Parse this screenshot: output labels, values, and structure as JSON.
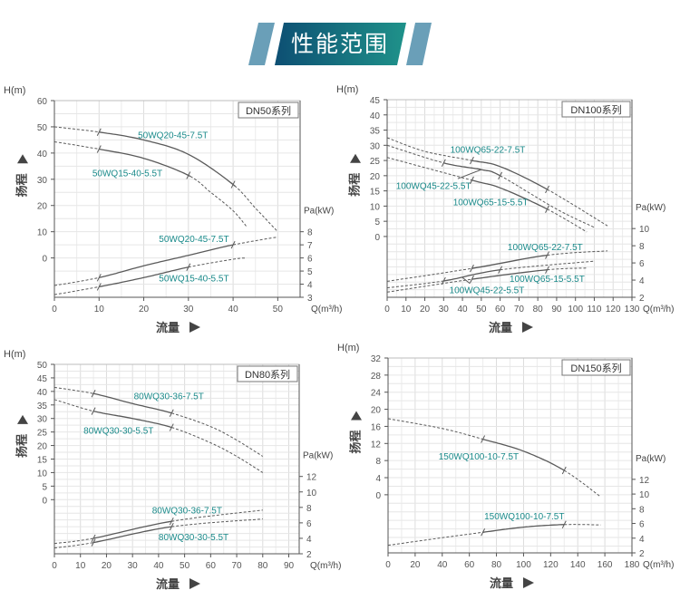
{
  "header": {
    "title": "性能范围"
  },
  "colors": {
    "curve": "#5a5a5a",
    "label": "#1a8a8a",
    "banner_start": "#0d4f73",
    "banner_end": "#1f928a",
    "banner_side": "#6a9fb8"
  },
  "chart_data": [
    {
      "type": "line",
      "title": "DN50系列",
      "ylabel": "H(m)",
      "y2label": "Pa(kW)",
      "xlabel": "Q(m³/h)",
      "y_axis_name": "扬程",
      "x_axis_name": "流量",
      "xlim": [
        0,
        55
      ],
      "ylim": [
        -15,
        60
      ],
      "y2lim": [
        3,
        18
      ],
      "xticks": [
        0,
        10,
        20,
        30,
        40,
        50
      ],
      "yticks": [
        0,
        10,
        20,
        30,
        40,
        50,
        60
      ],
      "y2ticks": [
        3,
        4,
        5,
        6,
        7,
        8
      ],
      "grid": true,
      "series": [
        {
          "name": "50WQ20-45-7.5T",
          "axis": "h",
          "points": [
            [
              0,
              50
            ],
            [
              10,
              48
            ],
            [
              20,
              45
            ],
            [
              30,
              39.5
            ],
            [
              40,
              28
            ],
            [
              45,
              19
            ],
            [
              50,
              10
            ]
          ],
          "solid": [
            10,
            40
          ],
          "label_at": [
            18.7,
            47
          ]
        },
        {
          "name": "50WQ15-40-5.5T",
          "axis": "h",
          "points": [
            [
              0,
              44.3
            ],
            [
              10,
              41.5
            ],
            [
              20,
              38
            ],
            [
              30,
              31.5
            ],
            [
              35,
              25
            ],
            [
              40,
              18
            ],
            [
              43,
              12
            ]
          ],
          "solid": [
            10,
            30
          ],
          "label_at": [
            8.5,
            32.6
          ]
        },
        {
          "name": "50WQ20-45-7.5T",
          "axis": "p",
          "points": [
            [
              0,
              3.9
            ],
            [
              10,
              4.5
            ],
            [
              20,
              5.4
            ],
            [
              30,
              6.2
            ],
            [
              40,
              7
            ],
            [
              50,
              7.6
            ]
          ],
          "solid": [
            10,
            40
          ],
          "label_at": [
            23.4,
            7.5
          ]
        },
        {
          "name": "50WQ15-40-5.5T",
          "axis": "p",
          "points": [
            [
              0,
              3.2
            ],
            [
              10,
              3.8
            ],
            [
              20,
              4.5
            ],
            [
              30,
              5.3
            ],
            [
              40,
              5.9
            ],
            [
              43,
              6.0
            ]
          ],
          "solid": [
            10,
            30
          ],
          "label_at": [
            23.4,
            4.5
          ]
        }
      ]
    },
    {
      "type": "line",
      "title": "DN100系列",
      "ylabel": "H(m)",
      "y2label": "Pa(kW)",
      "xlabel": "Q(m³/h)",
      "y_axis_name": "扬程",
      "x_axis_name": "流量",
      "xlim": [
        0,
        130
      ],
      "ylim": [
        -20,
        45
      ],
      "y2lim": [
        2,
        25
      ],
      "xticks": [
        0,
        10,
        20,
        30,
        40,
        50,
        60,
        70,
        80,
        90,
        100,
        110,
        120,
        130
      ],
      "yticks": [
        0,
        5,
        10,
        15,
        20,
        25,
        30,
        35,
        40,
        45
      ],
      "y2ticks": [
        2,
        4,
        6,
        8,
        10
      ],
      "grid": true,
      "series": [
        {
          "name": "100WQ65-22-7.5T",
          "axis": "h",
          "points": [
            [
              0,
              32.5
            ],
            [
              20,
              28
            ],
            [
              45,
              25
            ],
            [
              60,
              23
            ],
            [
              85,
              15.5
            ],
            [
              117,
              3.5
            ]
          ],
          "solid": [
            45,
            85
          ],
          "label_at": [
            33.5,
            28.7
          ]
        },
        {
          "name": "100WQ45-22-5.5T",
          "axis": "h",
          "points": [
            [
              0,
              30
            ],
            [
              30,
              24.2
            ],
            [
              50,
              22
            ],
            [
              60,
              20
            ],
            [
              90,
              9
            ],
            [
              110,
              3
            ]
          ],
          "solid": [
            30,
            60
          ],
          "label_at": [
            4.7,
            16.8
          ],
          "leader": [
            [
              37.5,
              19
            ],
            [
              50,
              22
            ]
          ]
        },
        {
          "name": "100WQ65-15-5.5T",
          "axis": "h",
          "points": [
            [
              0,
              26
            ],
            [
              45,
              18.5
            ],
            [
              60,
              16
            ],
            [
              85,
              9
            ],
            [
              106,
              1.5
            ]
          ],
          "solid": [
            45,
            85
          ],
          "label_at": [
            35,
            11.5
          ]
        },
        {
          "name": "100WQ65-22-7.5T",
          "axis": "p",
          "points": [
            [
              0,
              3.86
            ],
            [
              45,
              5.36
            ],
            [
              85,
              6.9
            ],
            [
              117,
              7.4
            ]
          ],
          "solid": [
            45,
            85
          ],
          "label_at": [
            64,
            7.9
          ]
        },
        {
          "name": "100WQ45-22-5.5T",
          "axis": "p",
          "points": [
            [
              0,
              3.1
            ],
            [
              30,
              3.9
            ],
            [
              60,
              5.2
            ],
            [
              110,
              6.2
            ]
          ],
          "solid": [
            30,
            60
          ],
          "label_at": [
            33,
            2.9
          ],
          "leader": [
            [
              44,
              3.6
            ],
            [
              40,
              4.3
            ]
          ]
        },
        {
          "name": "100WQ65-15-5.5T",
          "axis": "p",
          "points": [
            [
              0,
              2.6
            ],
            [
              45,
              4.1
            ],
            [
              85,
              5.2
            ],
            [
              106,
              5.4
            ]
          ],
          "solid": [
            45,
            85
          ],
          "label_at": [
            65,
            4.2
          ]
        }
      ]
    },
    {
      "type": "line",
      "title": "DN80系列",
      "ylabel": "H(m)",
      "y2label": "Pa(kW)",
      "xlabel": "Q(m³/h)",
      "y_axis_name": "扬程",
      "x_axis_name": "流量",
      "xlim": [
        0,
        94
      ],
      "ylim": [
        -20,
        50
      ],
      "y2lim": [
        2,
        26.5
      ],
      "xticks": [
        0,
        10,
        20,
        30,
        40,
        50,
        60,
        70,
        80,
        90
      ],
      "yticks": [
        0,
        5,
        10,
        15,
        20,
        25,
        30,
        35,
        40,
        45,
        50
      ],
      "y2ticks": [
        2,
        4,
        6,
        8,
        10,
        12
      ],
      "grid": true,
      "series": [
        {
          "name": "80WQ30-36-7.5T",
          "axis": "h",
          "points": [
            [
              0,
              41.5
            ],
            [
              15,
              39.2
            ],
            [
              30,
              35.5
            ],
            [
              45,
              32
            ],
            [
              60,
              27
            ],
            [
              70,
              22
            ],
            [
              80,
              16
            ]
          ],
          "solid": [
            15,
            45
          ],
          "label_at": [
            30.5,
            38.5
          ]
        },
        {
          "name": "80WQ30-30-5.5T",
          "axis": "h",
          "points": [
            [
              0,
              37
            ],
            [
              15,
              32.7
            ],
            [
              30,
              30
            ],
            [
              45,
              26.7
            ],
            [
              60,
              21
            ],
            [
              70,
              16
            ],
            [
              80,
              10
            ]
          ],
          "solid": [
            15,
            45
          ],
          "label_at": [
            11.2,
            25.8
          ]
        },
        {
          "name": "80WQ30-36-7.5T",
          "axis": "p",
          "points": [
            [
              0,
              3.33
            ],
            [
              15,
              4.0
            ],
            [
              45,
              6.2
            ],
            [
              80,
              7.65
            ]
          ],
          "solid": [
            15,
            45
          ],
          "label_at": [
            37.5,
            7.7
          ]
        },
        {
          "name": "80WQ30-30-5.5T",
          "axis": "p",
          "points": [
            [
              0,
              2.75
            ],
            [
              15,
              3.45
            ],
            [
              45,
              5.5
            ],
            [
              80,
              6.5
            ]
          ],
          "solid": [
            15,
            45
          ],
          "label_at": [
            40,
            4.2
          ]
        }
      ]
    },
    {
      "type": "line",
      "title": "DN150系列",
      "ylabel": "H(m)",
      "y2label": "Pa(kW)",
      "xlabel": "Q(m³/h)",
      "y_axis_name": "扬程",
      "x_axis_name": "流量",
      "xlim": [
        0,
        180
      ],
      "ylim": [
        -13.6,
        32
      ],
      "y2lim": [
        2,
        28.5
      ],
      "xticks": [
        0,
        20,
        40,
        60,
        80,
        100,
        120,
        140,
        160,
        180
      ],
      "yticks": [
        0,
        4,
        8,
        12,
        16,
        20,
        24,
        28,
        32
      ],
      "y2ticks": [
        2,
        4,
        6,
        8,
        10,
        12
      ],
      "grid": true,
      "series": [
        {
          "name": "150WQ100-10-7.5T",
          "axis": "h",
          "points": [
            [
              0,
              17.8
            ],
            [
              40,
              15.5
            ],
            [
              70,
              13
            ],
            [
              100,
              10.2
            ],
            [
              130,
              5.7
            ],
            [
              157,
              -0.5
            ]
          ],
          "solid": [
            70,
            130
          ],
          "label_at": [
            37.3,
            9.1
          ]
        },
        {
          "name": "150WQ100-10-7.5T",
          "axis": "p",
          "points": [
            [
              0,
              3.03
            ],
            [
              40,
              4.06
            ],
            [
              70,
              4.8
            ],
            [
              100,
              5.5
            ],
            [
              130,
              5.85
            ],
            [
              157,
              5.8
            ]
          ],
          "solid": [
            70,
            130
          ],
          "label_at": [
            71,
            7.06
          ]
        }
      ]
    }
  ]
}
